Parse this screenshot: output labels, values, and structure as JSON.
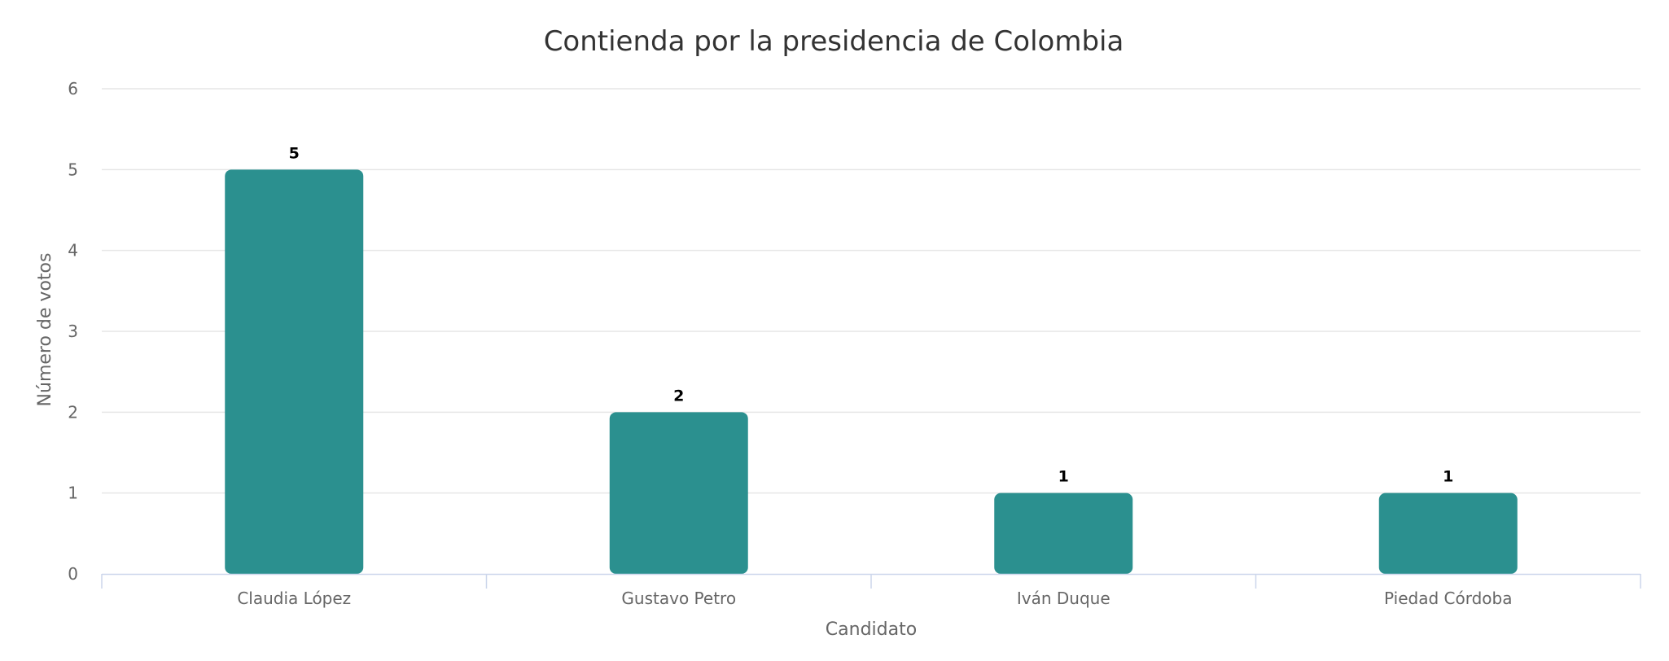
{
  "chart_data": {
    "type": "bar",
    "title": "Contienda por la presidencia de Colombia",
    "xlabel": "Candidato",
    "ylabel": "Número de votos",
    "categories": [
      "Claudia López",
      "Gustavo Petro",
      "Iván Duque",
      "Piedad Córdoba"
    ],
    "values": [
      5,
      2,
      1,
      1
    ],
    "ylim": [
      0,
      6
    ],
    "yticks": [
      "0",
      "1",
      "2",
      "3",
      "4",
      "5",
      "6"
    ],
    "grid": true,
    "legend": "none",
    "bar_color": "#2b908f"
  }
}
